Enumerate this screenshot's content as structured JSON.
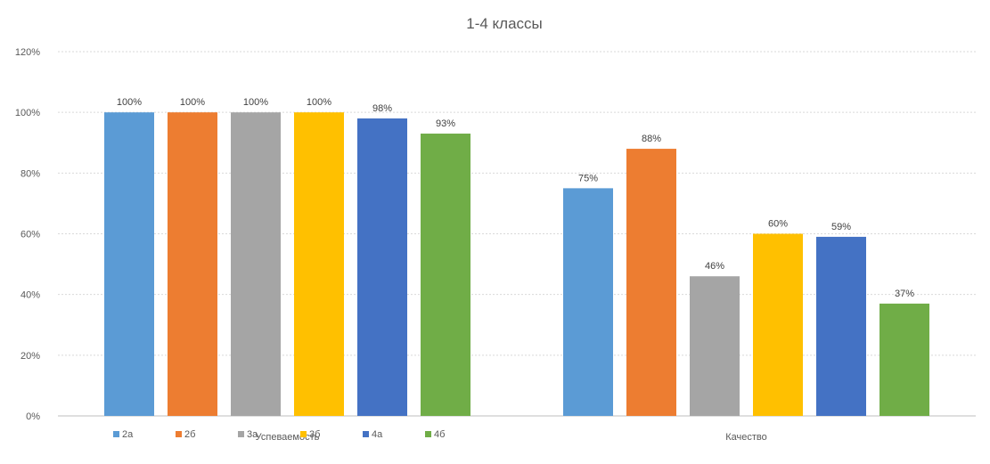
{
  "chart_data": {
    "type": "bar",
    "title": "1-4 классы",
    "categories": [
      "Успеваемость",
      "Качество"
    ],
    "series": [
      {
        "name": "2а",
        "color": "#5B9BD5",
        "values": [
          100,
          75
        ]
      },
      {
        "name": "2б",
        "color": "#ED7D31",
        "values": [
          100,
          88
        ]
      },
      {
        "name": "3а",
        "color": "#A5A5A5",
        "values": [
          100,
          46
        ]
      },
      {
        "name": "3б",
        "color": "#FFC000",
        "values": [
          100,
          60
        ]
      },
      {
        "name": "4а",
        "color": "#4472C4",
        "values": [
          98,
          59
        ]
      },
      {
        "name": "4б",
        "color": "#70AD47",
        "values": [
          93,
          37
        ]
      }
    ],
    "value_suffix": "%",
    "ylim": [
      0,
      120
    ],
    "yticks": [
      0,
      20,
      40,
      60,
      80,
      100,
      120
    ],
    "grid": true,
    "legend_position": "bottom-left"
  }
}
